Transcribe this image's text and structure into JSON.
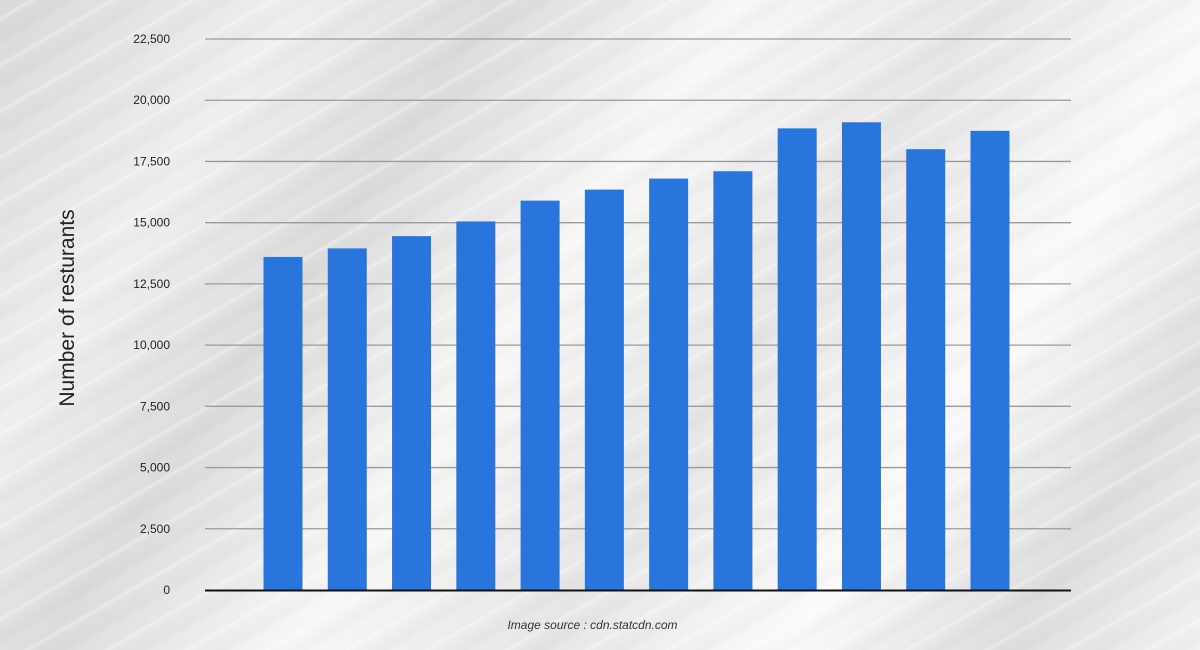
{
  "chart_data": {
    "type": "bar",
    "title": "",
    "xlabel": "",
    "ylabel": "Number of resturants",
    "ylim": [
      0,
      22500
    ],
    "yticks": [
      0,
      2500,
      5000,
      7500,
      10000,
      12500,
      15000,
      17500,
      20000,
      22500
    ],
    "ytick_labels": [
      "0",
      "2,500",
      "5,000",
      "7,500",
      "10,000",
      "12,500",
      "15,000",
      "17,500",
      "20,000",
      "22,500"
    ],
    "grid": true,
    "legend": "none",
    "categories": [
      "",
      "",
      "",
      "",
      "",
      "",
      "",
      "",
      "",
      "",
      "",
      ""
    ],
    "values": [
      13600,
      13950,
      14450,
      15050,
      15900,
      16350,
      16800,
      17100,
      18850,
      19100,
      18000,
      18750
    ],
    "colors": {
      "bar": "#2876dd",
      "grid": "#9a9a9a",
      "axis": "#111111"
    }
  },
  "source_note": "Image source : cdn.statcdn.com"
}
